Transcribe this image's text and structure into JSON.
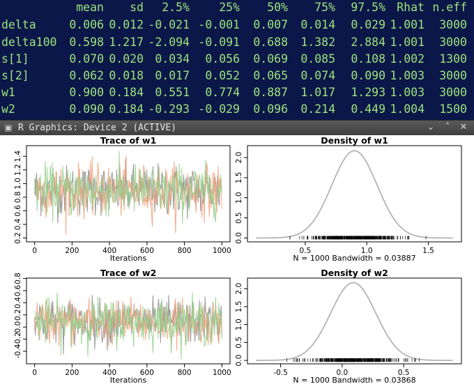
{
  "terminal": {
    "header": [
      "mean",
      "sd",
      "2.5%",
      "25%",
      "50%",
      "75%",
      "97.5%",
      "Rhat",
      "n.eff"
    ],
    "rows": [
      {
        "name": "delta",
        "values": [
          "0.006",
          "0.012",
          "-0.021",
          "-0.001",
          "0.007",
          "0.014",
          "0.029",
          "1.001",
          "3000"
        ]
      },
      {
        "name": "delta100",
        "values": [
          "0.598",
          "1.217",
          "-2.094",
          "-0.091",
          "0.688",
          "1.382",
          "2.884",
          "1.001",
          "3000"
        ]
      },
      {
        "name": "s[1]",
        "values": [
          "0.070",
          "0.020",
          "0.034",
          "0.056",
          "0.069",
          "0.085",
          "0.108",
          "1.002",
          "1300"
        ]
      },
      {
        "name": "s[2]",
        "values": [
          "0.062",
          "0.018",
          "0.017",
          "0.052",
          "0.065",
          "0.074",
          "0.090",
          "1.003",
          "3000"
        ]
      },
      {
        "name": "w1",
        "values": [
          "0.900",
          "0.184",
          "0.551",
          "0.774",
          "0.887",
          "1.017",
          "1.293",
          "1.003",
          "3000"
        ]
      },
      {
        "name": "w2",
        "values": [
          "0.090",
          "0.184",
          "-0.293",
          "-0.029",
          "0.096",
          "0.214",
          "0.449",
          "1.004",
          "1500"
        ]
      }
    ]
  },
  "window": {
    "title": "R Graphics: Device 2 (ACTIVE)",
    "icon": "r-app-icon",
    "buttons": {
      "minimize": "⌄",
      "maximize": "˄",
      "close": "✕"
    }
  },
  "chart_data": [
    {
      "type": "line",
      "title": "Trace of w1",
      "xlabel": "Iterations",
      "xlim": [
        0,
        1000
      ],
      "ylim": [
        0.2,
        1.5
      ],
      "xticks": [
        "0",
        "200",
        "400",
        "600",
        "800",
        "1000"
      ],
      "yticks": [
        "0.2",
        "0.4",
        "0.6",
        "0.8",
        "1.0",
        "1.2",
        "1.4"
      ],
      "series": [
        {
          "color": "#8c8c8c",
          "mean": 0.9,
          "sd": 0.184
        },
        {
          "color": "#f2a07a",
          "mean": 0.9,
          "sd": 0.184
        },
        {
          "color": "#95d08c",
          "mean": 0.9,
          "sd": 0.184
        }
      ]
    },
    {
      "type": "area",
      "title": "Density of w1",
      "caption": "N = 1000   Bandwidth = 0.03887",
      "xlim": [
        0.1,
        1.7
      ],
      "ylim": [
        0,
        2.2
      ],
      "xticks": [
        "0.5",
        "1.0",
        "1.5"
      ],
      "yticks": [
        "0.0",
        "0.5",
        "1.0",
        "1.5",
        "2.0"
      ],
      "mean": 0.9,
      "sd": 0.184,
      "peak": 2.17,
      "rug_range": [
        0.3,
        1.55
      ]
    },
    {
      "type": "line",
      "title": "Trace of w2",
      "xlabel": "Iterations",
      "xlim": [
        0,
        1000
      ],
      "ylim": [
        -0.55,
        0.75
      ],
      "xticks": [
        "0",
        "200",
        "400",
        "600",
        "800",
        "1000"
      ],
      "yticks": [
        "-0.4",
        "-0.2",
        "0.0",
        "0.2",
        "0.4",
        "0.6",
        "0.8"
      ],
      "series": [
        {
          "color": "#8c8c8c",
          "mean": 0.09,
          "sd": 0.184
        },
        {
          "color": "#f2a07a",
          "mean": 0.09,
          "sd": 0.184
        },
        {
          "color": "#95d08c",
          "mean": 0.09,
          "sd": 0.184
        }
      ]
    },
    {
      "type": "area",
      "title": "Density of w2",
      "caption": "N = 1000   Bandwidth = 0.03868",
      "xlim": [
        -0.7,
        0.9
      ],
      "ylim": [
        0,
        2.2
      ],
      "xticks": [
        "-0.5",
        "0.0",
        "0.5"
      ],
      "yticks": [
        "0.0",
        "0.5",
        "1.0",
        "1.5",
        "2.0"
      ],
      "mean": 0.09,
      "sd": 0.184,
      "peak": 2.17,
      "rug_range": [
        -0.48,
        0.72
      ]
    }
  ]
}
